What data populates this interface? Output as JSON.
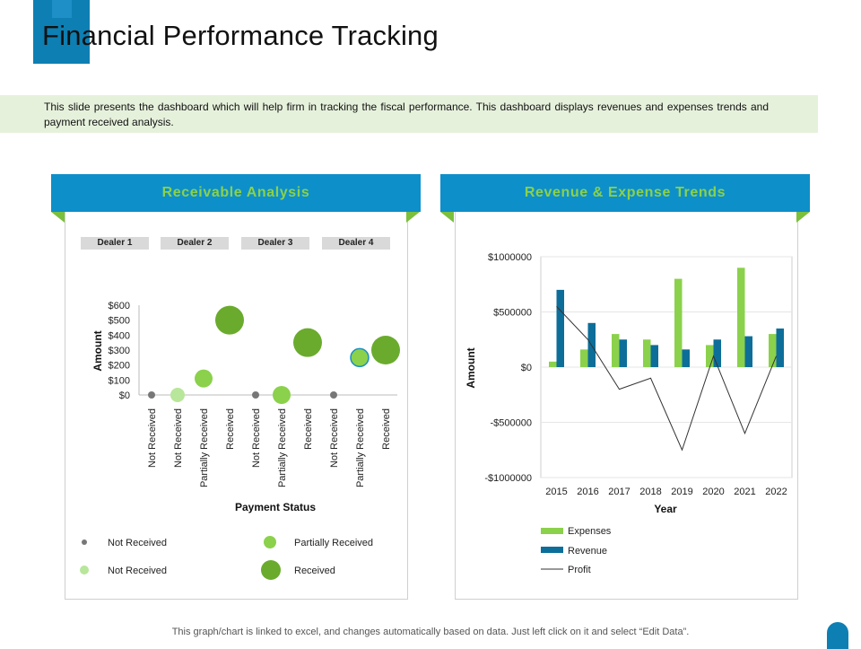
{
  "header": {
    "title": "Financial Performance Tracking",
    "description": "This slide presents the dashboard which will help firm in tracking the fiscal performance. This dashboard displays revenues and expenses trends and payment received analysis."
  },
  "left_panel": {
    "title": "Receivable Analysis",
    "dealers": [
      "Dealer 1",
      "Dealer 2",
      "Dealer 3",
      "Dealer 4"
    ],
    "legend": [
      "Not Received",
      "Partially Received",
      "Not Received",
      "Received"
    ]
  },
  "right_panel": {
    "title": "Revenue & Expense Trends"
  },
  "footer": {
    "note": "This graph/chart is linked to excel, and changes automatically based on data. Just left click on it and select “Edit Data”."
  },
  "colors": {
    "accent_blue": "#0d8fc9",
    "dark_blue": "#0d6e99",
    "green": "#8bd14b",
    "dark_green": "#6aab2e",
    "light_green": "#b8e69a",
    "gray": "#777777"
  },
  "chart_data": [
    {
      "type": "scatter",
      "title": "Receivable Analysis",
      "xlabel": "Payment Status",
      "ylabel": "Amount",
      "ylim": [
        0,
        600
      ],
      "yticks": [
        "$0",
        "$100",
        "$200",
        "$300",
        "$400",
        "$500",
        "$600"
      ],
      "categories": [
        "Not Received",
        "Not Received",
        "Partially Received",
        "Received",
        "Not Received",
        "Partially Received",
        "Received",
        "Not Received",
        "Partially Received",
        "Received"
      ],
      "points": [
        {
          "dealer": "Dealer 1",
          "status": "Not Received",
          "series": "small",
          "value": 0
        },
        {
          "dealer": "Dealer 1",
          "status": "Not Received",
          "series": "light",
          "value": 0
        },
        {
          "dealer": "Dealer 1",
          "status": "Partially Received",
          "series": "partial",
          "value": 110
        },
        {
          "dealer": "Dealer 2",
          "status": "Received",
          "series": "received",
          "value": 500
        },
        {
          "dealer": "Dealer 2",
          "status": "Not Received",
          "series": "small",
          "value": 0
        },
        {
          "dealer": "Dealer 3",
          "status": "Partially Received",
          "series": "partial",
          "value": 0
        },
        {
          "dealer": "Dealer 3",
          "status": "Received",
          "series": "received",
          "value": 350
        },
        {
          "dealer": "Dealer 3",
          "status": "Not Received",
          "series": "small",
          "value": 0
        },
        {
          "dealer": "Dealer 4",
          "status": "Partially Received",
          "series": "partial",
          "value": 250
        },
        {
          "dealer": "Dealer 4",
          "status": "Received",
          "series": "received",
          "value": 300
        }
      ]
    },
    {
      "type": "bar",
      "title": "Revenue & Expense Trends",
      "xlabel": "Year",
      "ylabel": "Amount",
      "ylim": [
        -1000000,
        1000000
      ],
      "yticks": [
        "-$1000000",
        "-$500000",
        "$0",
        "$500000",
        "$1000000"
      ],
      "categories": [
        "2015",
        "2016",
        "2017",
        "2018",
        "2019",
        "2020",
        "2021",
        "2022"
      ],
      "series": [
        {
          "name": "Expenses",
          "type": "bar",
          "values": [
            50000,
            160000,
            300000,
            250000,
            800000,
            200000,
            900000,
            300000
          ]
        },
        {
          "name": "Revenue",
          "type": "bar",
          "values": [
            700000,
            400000,
            250000,
            200000,
            160000,
            250000,
            280000,
            350000
          ]
        },
        {
          "name": "Profit",
          "type": "line",
          "values": [
            550000,
            250000,
            -200000,
            -100000,
            -750000,
            100000,
            -600000,
            100000
          ]
        }
      ]
    }
  ]
}
